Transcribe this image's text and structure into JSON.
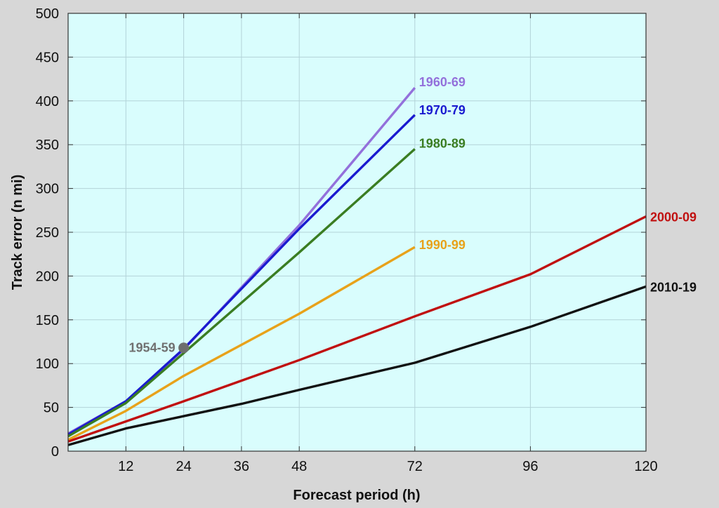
{
  "chart_data": {
    "type": "line",
    "title": "",
    "xlabel": "Forecast period (h)",
    "ylabel": "Track error (n mi)",
    "xlim": [
      0,
      120
    ],
    "ylim": [
      0,
      500
    ],
    "x_ticks": [
      12,
      24,
      36,
      48,
      72,
      96,
      120
    ],
    "y_ticks": [
      0,
      50,
      100,
      150,
      200,
      250,
      300,
      350,
      400,
      450,
      500
    ],
    "grid": true,
    "background_color": "#d9fdfd",
    "legend": "none",
    "series": [
      {
        "name": "1960-69",
        "color": "#9370db",
        "x": [
          0,
          12,
          24,
          48,
          72
        ],
        "y": [
          20,
          57,
          116,
          258,
          415
        ]
      },
      {
        "name": "1970-79",
        "color": "#1a1ad0",
        "x": [
          0,
          12,
          24,
          48,
          72
        ],
        "y": [
          19,
          57,
          117,
          254,
          384
        ]
      },
      {
        "name": "1980-89",
        "color": "#3a7d22",
        "x": [
          0,
          12,
          24,
          48,
          72
        ],
        "y": [
          17,
          55,
          112,
          227,
          345
        ]
      },
      {
        "name": "1990-99",
        "color": "#e8a21a",
        "x": [
          0,
          12,
          24,
          48,
          72
        ],
        "y": [
          13,
          46,
          86,
          157,
          233
        ]
      },
      {
        "name": "2000-09",
        "color": "#c01010",
        "x": [
          0,
          12,
          24,
          48,
          72,
          96,
          120
        ],
        "y": [
          11,
          34,
          57,
          104,
          154,
          202,
          268
        ]
      },
      {
        "name": "2010-19",
        "color": "#111111",
        "x": [
          0,
          12,
          24,
          36,
          48,
          72,
          96,
          120
        ],
        "y": [
          7,
          26,
          40,
          54,
          70,
          101,
          142,
          188
        ]
      }
    ],
    "points": [
      {
        "name": "1954-59",
        "color": "#6e6e6e",
        "x": 24,
        "y": 118
      }
    ]
  }
}
